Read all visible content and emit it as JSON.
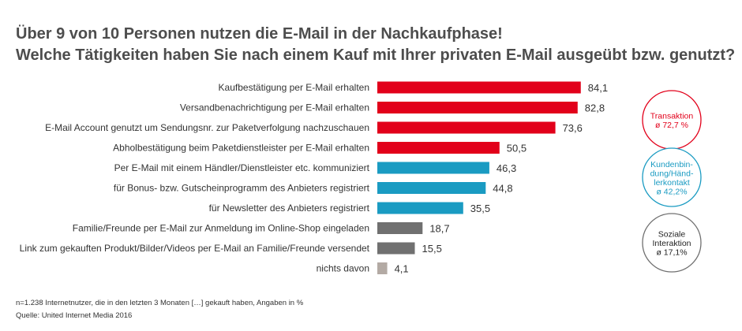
{
  "title": "Über 9 von 10 Personen nutzen die E-Mail in der Nachkaufphase!",
  "subtitle": "Welche Tätigkeiten haben Sie nach einem Kauf mit Ihrer privaten E-Mail ausgeübt bzw. genutzt?",
  "colors": {
    "transaktion": "#e2001a",
    "kundenbindung": "#1a9bc2",
    "soziale": "#707070",
    "none": "#b3aaa4"
  },
  "chart_data": {
    "type": "bar",
    "orientation": "horizontal",
    "title": "Über 9 von 10 Personen nutzen die E-Mail in der Nachkaufphase!",
    "subtitle": "Welche Tätigkeiten haben Sie nach einem Kauf mit Ihrer privaten E-Mail ausgeübt bzw. genutzt?",
    "xlim": [
      0,
      100
    ],
    "grid": false,
    "categories": [
      "Kaufbestätigung per E-Mail erhalten",
      "Versandbenachrichtigung per E-Mail erhalten",
      "E-Mail Account genutzt um Sendungsnr. zur Paketverfolgung nachzuschauen",
      "Abholbestätigung beim Paketdienstleister per E-Mail erhalten",
      "Per E-Mail mit einem Händler/Dienstleister etc. kommuniziert",
      "für Bonus- bzw. Gutscheinprogramm des Anbieters registriert",
      "für Newsletter des Anbieters registriert",
      "Familie/Freunde per E-Mail zur Anmeldung im Online-Shop eingeladen",
      "Link zum gekauften Produkt/Bilder/Videos per E-Mail an Familie/Freunde versendet",
      "nichts davon"
    ],
    "values": [
      84.1,
      82.8,
      73.6,
      50.5,
      46.3,
      44.8,
      35.5,
      18.7,
      15.5,
      4.1
    ],
    "value_labels": [
      "84,1",
      "82,8",
      "73,6",
      "50,5",
      "46,3",
      "44,8",
      "35,5",
      "18,7",
      "15,5",
      "4,1"
    ],
    "group_of_bar": [
      "transaktion",
      "transaktion",
      "transaktion",
      "transaktion",
      "kundenbindung",
      "kundenbindung",
      "kundenbindung",
      "soziale",
      "soziale",
      "none"
    ],
    "groups": [
      {
        "key": "transaktion",
        "lines": [
          "Transaktion",
          "ø 72,7 %"
        ]
      },
      {
        "key": "kundenbindung",
        "lines": [
          "Kundenbin-",
          "dung/Händ-",
          "lerkontakt",
          "ø 42,2%"
        ]
      },
      {
        "key": "soziale",
        "lines": [
          "Soziale",
          "Interaktion",
          "ø 17,1%"
        ]
      }
    ]
  },
  "footnote": "n=1.238 Internetnutzer, die in den letzten 3 Monaten […] gekauft haben, Angaben in %",
  "source": "Quelle: United Internet Media 2016"
}
